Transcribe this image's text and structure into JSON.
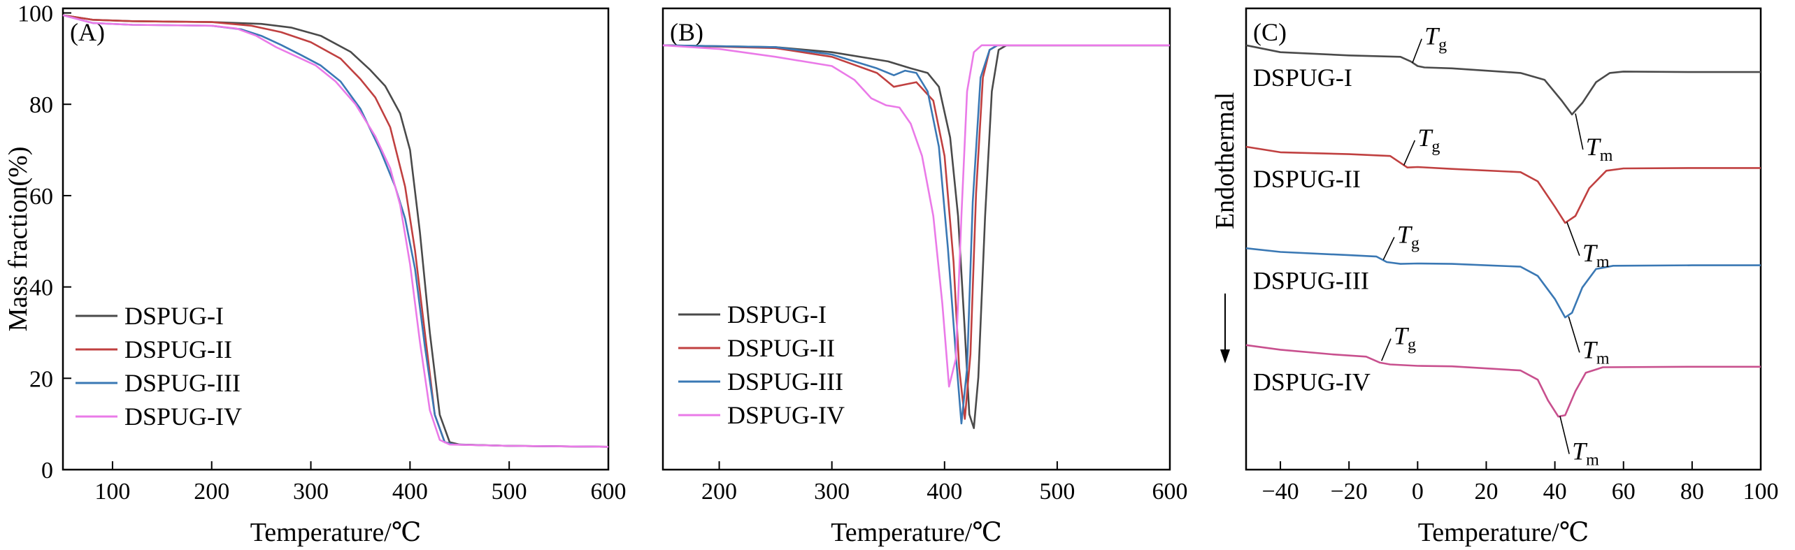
{
  "figure": {
    "width": 2567,
    "height": 787
  },
  "chart_data": [
    {
      "id": "A",
      "type": "line",
      "panel_label": "(A)",
      "xlabel": "Temperature/℃",
      "ylabel": "Mass fraction(%)",
      "xlim": [
        50,
        600
      ],
      "ylim": [
        0,
        101
      ],
      "xticks": [
        100,
        200,
        300,
        400,
        500,
        600
      ],
      "yticks": [
        0,
        20,
        40,
        60,
        80,
        100
      ],
      "legend": {
        "position": "bottom-left"
      },
      "series": [
        {
          "name": "DSPUG-I",
          "color": "#4a4a4a",
          "x": [
            50,
            80,
            120,
            200,
            250,
            280,
            310,
            340,
            360,
            375,
            390,
            400,
            410,
            420,
            430,
            440,
            450,
            500,
            600
          ],
          "y": [
            99.5,
            98.5,
            98.2,
            98,
            97.6,
            96.8,
            95,
            91.5,
            87.5,
            84,
            78,
            70,
            52,
            30,
            12,
            6,
            5.5,
            5.2,
            5
          ]
        },
        {
          "name": "DSPUG-II",
          "color": "#c04040",
          "x": [
            50,
            80,
            120,
            200,
            240,
            270,
            300,
            330,
            350,
            365,
            380,
            395,
            405,
            415,
            425,
            435,
            445,
            500,
            600
          ],
          "y": [
            99.5,
            98.5,
            98.2,
            98,
            97.2,
            95.8,
            93.6,
            90,
            85.5,
            81.5,
            75,
            62,
            48,
            30,
            12,
            6,
            5.5,
            5.2,
            5
          ]
        },
        {
          "name": "DSPUG-III",
          "color": "#3a78b4",
          "x": [
            50,
            80,
            120,
            200,
            230,
            250,
            270,
            290,
            310,
            330,
            350,
            370,
            385,
            395,
            405,
            415,
            425,
            435,
            445,
            500,
            600
          ],
          "y": [
            99.5,
            97.8,
            97.4,
            97.2,
            96.4,
            95,
            93,
            90.8,
            88.5,
            85,
            79,
            70,
            62,
            55,
            44,
            27,
            12,
            6,
            5.5,
            5.2,
            5
          ]
        },
        {
          "name": "DSPUG-IV",
          "color": "#ea7ae8",
          "x": [
            50,
            80,
            120,
            200,
            225,
            245,
            265,
            285,
            305,
            325,
            345,
            365,
            380,
            390,
            400,
            410,
            420,
            430,
            440,
            500,
            600
          ],
          "y": [
            99.5,
            97.8,
            97.4,
            97.2,
            96.6,
            95,
            92.5,
            90.5,
            88.5,
            85,
            80,
            73,
            66,
            58,
            45,
            28,
            13,
            6.5,
            5.5,
            5.2,
            5
          ]
        }
      ]
    },
    {
      "id": "B",
      "type": "line",
      "panel_label": "(B)",
      "xlabel": "Temperature/℃",
      "ylabel": "",
      "xlim": [
        150,
        600
      ],
      "ylim": [
        0,
        100
      ],
      "xticks": [
        200,
        300,
        400,
        500,
        600
      ],
      "yticks": [],
      "legend": {
        "position": "bottom-center"
      },
      "series": [
        {
          "name": "DSPUG-I",
          "color": "#4a4a4a",
          "x": [
            150,
            250,
            300,
            350,
            370,
            385,
            395,
            405,
            412,
            418,
            422,
            426,
            430,
            436,
            442,
            448,
            455,
            600
          ],
          "y": [
            92,
            91.6,
            90.5,
            88.5,
            87,
            86,
            83,
            72,
            55,
            30,
            12,
            9,
            20,
            55,
            82,
            91,
            92,
            92
          ]
        },
        {
          "name": "DSPUG-II",
          "color": "#c04040",
          "x": [
            150,
            250,
            300,
            340,
            355,
            365,
            375,
            390,
            400,
            408,
            413,
            418,
            423,
            428,
            434,
            440,
            447,
            600
          ],
          "y": [
            92,
            91.4,
            89.5,
            86,
            83,
            83.5,
            84,
            80,
            68,
            45,
            22,
            11,
            25,
            60,
            85,
            91,
            92,
            92
          ]
        },
        {
          "name": "DSPUG-III",
          "color": "#3a78b4",
          "x": [
            150,
            250,
            300,
            340,
            355,
            365,
            375,
            385,
            395,
            403,
            410,
            415,
            420,
            425,
            432,
            440,
            447,
            600
          ],
          "y": [
            92,
            91.6,
            90,
            87,
            85.5,
            86.5,
            86,
            82,
            70,
            48,
            25,
            10,
            22,
            58,
            85,
            91,
            92,
            92
          ]
        },
        {
          "name": "DSPUG-IV",
          "color": "#ea7ae8",
          "x": [
            150,
            200,
            250,
            300,
            320,
            335,
            348,
            360,
            370,
            380,
            390,
            398,
            404,
            410,
            415,
            420,
            426,
            433,
            600
          ],
          "y": [
            92,
            91.2,
            89.5,
            87.5,
            84.5,
            80.5,
            79,
            78.5,
            75,
            68,
            55,
            36,
            18,
            24,
            55,
            82,
            90.5,
            92,
            92
          ]
        }
      ]
    },
    {
      "id": "C",
      "type": "line",
      "panel_label": "(C)",
      "xlabel": "Temperature/℃",
      "ylabel": "Endothermal",
      "xlim": [
        -50,
        100
      ],
      "ylim": [
        0,
        100
      ],
      "xticks": [
        -40,
        -20,
        0,
        20,
        40,
        60,
        80,
        100
      ],
      "yticks": [],
      "series": [
        {
          "name": "DSPUG-I",
          "color": "#4a4a4a",
          "label_x": -48,
          "label_y": 85,
          "x": [
            -50,
            -40,
            -20,
            -5,
            -2,
            0,
            2,
            10,
            30,
            37,
            42,
            45,
            48,
            52,
            56,
            60,
            80,
            100
          ],
          "y": [
            92,
            90.5,
            89.8,
            89.5,
            88.5,
            87.5,
            87.2,
            87,
            86,
            84.5,
            80,
            77,
            79.5,
            84,
            86,
            86.3,
            86.2,
            86.2
          ],
          "tg": {
            "x": -1.5,
            "y": 88.2,
            "label_x": 2,
            "label_y": 94,
            "text": "T",
            "sub": "g"
          },
          "tm": {
            "x": 46,
            "y": 77.2,
            "label_x": 49,
            "label_y": 70,
            "text": "T",
            "sub": "m"
          }
        },
        {
          "name": "DSPUG-II",
          "color": "#c04040",
          "label_x": -48,
          "label_y": 63,
          "x": [
            -50,
            -40,
            -20,
            -8,
            -5,
            -3,
            0,
            10,
            30,
            35,
            40,
            43,
            46,
            50,
            55,
            60,
            80,
            100
          ],
          "y": [
            70,
            68.8,
            68.4,
            68,
            66.5,
            65.5,
            65.6,
            65.2,
            64.5,
            62.5,
            57,
            53.5,
            55,
            61,
            64.8,
            65.3,
            65.4,
            65.4
          ],
          "tg": {
            "x": -4,
            "y": 66,
            "label_x": 0,
            "label_y": 72,
            "text": "T",
            "sub": "g"
          },
          "tm": {
            "x": 43.5,
            "y": 53.7,
            "label_x": 48,
            "label_y": 47,
            "text": "T",
            "sub": "m"
          }
        },
        {
          "name": "DSPUG-III",
          "color": "#3a78b4",
          "label_x": -48,
          "label_y": 41,
          "x": [
            -50,
            -40,
            -20,
            -12,
            -9,
            -5,
            0,
            10,
            30,
            35,
            40,
            43,
            45,
            48,
            52,
            57,
            80,
            100
          ],
          "y": [
            48,
            47.2,
            46.5,
            46.2,
            45,
            44.6,
            44.7,
            44.6,
            44,
            42,
            37,
            33,
            34,
            39.5,
            43.5,
            44.2,
            44.3,
            44.3
          ],
          "tg": {
            "x": -10,
            "y": 45.5,
            "label_x": -6,
            "label_y": 51,
            "text": "T",
            "sub": "g"
          },
          "tm": {
            "x": 44,
            "y": 33.2,
            "label_x": 48,
            "label_y": 26,
            "text": "T",
            "sub": "m"
          }
        },
        {
          "name": "DSPUG-IV",
          "color": "#c8508e",
          "label_x": -48,
          "label_y": 19,
          "x": [
            -50,
            -40,
            -25,
            -15,
            -11,
            -8,
            0,
            10,
            30,
            35,
            38,
            41,
            43,
            46,
            49,
            54,
            80,
            100
          ],
          "y": [
            27,
            26,
            25,
            24.5,
            23.2,
            22.8,
            22.5,
            22.4,
            21.5,
            19.5,
            15,
            11.5,
            11.8,
            17,
            21,
            22.2,
            22.3,
            22.3
          ],
          "tg": {
            "x": -10.5,
            "y": 23.6,
            "label_x": -7,
            "label_y": 29,
            "text": "T",
            "sub": "g"
          },
          "tm": {
            "x": 41.5,
            "y": 11.6,
            "label_x": 45,
            "label_y": 4,
            "text": "T",
            "sub": "m"
          }
        }
      ]
    }
  ]
}
